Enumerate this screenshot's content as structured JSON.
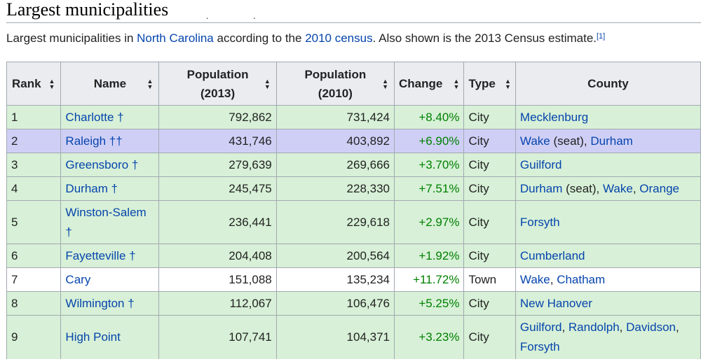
{
  "section": {
    "title": "Largest municipalities",
    "intro_prefix": "Largest municipalities in ",
    "intro_link_state": "North Carolina",
    "intro_middle": " according to the ",
    "intro_link_census": "2010 census",
    "intro_suffix": ". Also shown is the 2013 Census estimate.",
    "footnote": "[1]"
  },
  "table": {
    "headers": {
      "rank": "Rank",
      "name": "Name",
      "pop2013_line1": "Population",
      "pop2013_line2": "(2013)",
      "pop2010_line1": "Population",
      "pop2010_line2": "(2010)",
      "change": "Change",
      "type": "Type",
      "county": "County"
    },
    "sort_icon": "sort-arrows-icon",
    "colors": {
      "city_row": "#d7f0d7",
      "seat_row": "#cfcff6",
      "town_row": "#ffffff",
      "link": "#0645ad",
      "change": "#008000"
    },
    "rows": [
      {
        "rank": "1",
        "name": "Charlotte †",
        "pop2013": "792,862",
        "pop2010": "731,424",
        "change": "+8.40%",
        "type": "City",
        "county": [
          {
            "text": "Mecklenburg",
            "link": true
          }
        ]
      },
      {
        "rank": "2",
        "name": "Raleigh ††",
        "pop2013": "431,746",
        "pop2010": "403,892",
        "change": "+6.90%",
        "type": "City",
        "county": [
          {
            "text": "Wake",
            "link": true
          },
          {
            "text": " (seat), ",
            "link": false
          },
          {
            "text": "Durham",
            "link": true
          }
        ]
      },
      {
        "rank": "3",
        "name": "Greensboro †",
        "pop2013": "279,639",
        "pop2010": "269,666",
        "change": "+3.70%",
        "type": "City",
        "county": [
          {
            "text": "Guilford",
            "link": true
          }
        ]
      },
      {
        "rank": "4",
        "name": "Durham †",
        "pop2013": "245,475",
        "pop2010": "228,330",
        "change": "+7.51%",
        "type": "City",
        "county": [
          {
            "text": "Durham",
            "link": true
          },
          {
            "text": " (seat), ",
            "link": false
          },
          {
            "text": "Wake",
            "link": true
          },
          {
            "text": ", ",
            "link": false
          },
          {
            "text": "Orange",
            "link": true
          }
        ]
      },
      {
        "rank": "5",
        "name": "Winston-Salem †",
        "pop2013": "236,441",
        "pop2010": "229,618",
        "change": "+2.97%",
        "type": "City",
        "county": [
          {
            "text": "Forsyth",
            "link": true
          }
        ]
      },
      {
        "rank": "6",
        "name": "Fayetteville †",
        "pop2013": "204,408",
        "pop2010": "200,564",
        "change": "+1.92%",
        "type": "City",
        "county": [
          {
            "text": "Cumberland",
            "link": true
          }
        ]
      },
      {
        "rank": "7",
        "name": "Cary",
        "pop2013": "151,088",
        "pop2010": "135,234",
        "change": "+11.72%",
        "type": "Town",
        "county": [
          {
            "text": "Wake",
            "link": true
          },
          {
            "text": ", ",
            "link": false
          },
          {
            "text": "Chatham",
            "link": true
          }
        ]
      },
      {
        "rank": "8",
        "name": "Wilmington †",
        "pop2013": "112,067",
        "pop2010": "106,476",
        "change": "+5.25%",
        "type": "City",
        "county": [
          {
            "text": "New Hanover",
            "link": true
          }
        ]
      },
      {
        "rank": "9",
        "name": "High Point",
        "pop2013": "107,741",
        "pop2010": "104,371",
        "change": "+3.23%",
        "type": "City",
        "county": [
          {
            "text": "Guilford",
            "link": true
          },
          {
            "text": ", ",
            "link": false
          },
          {
            "text": "Randolph",
            "link": true
          },
          {
            "text": ", ",
            "link": false
          },
          {
            "text": "Davidson",
            "link": true
          },
          {
            "text": ", ",
            "link": false
          },
          {
            "text": "Forsyth",
            "link": true
          }
        ]
      }
    ]
  }
}
